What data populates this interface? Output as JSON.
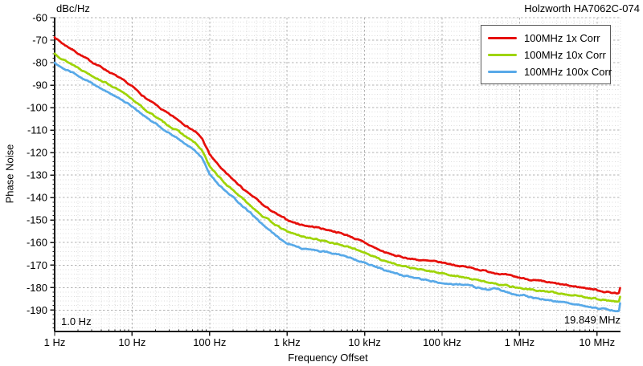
{
  "header": {
    "unit_label": "dBc/Hz",
    "title": "Holzworth HA7062C-074"
  },
  "chart_data": {
    "type": "line",
    "title": "Holzworth HA7062C-074",
    "xlabel": "Frequency Offset",
    "ylabel": "Phase Noise",
    "y_unit": "dBc/Hz",
    "x_scale": "log",
    "xlim": [
      1,
      19849000
    ],
    "ylim": [
      -199.5,
      -60
    ],
    "grid": true,
    "legend_position": "top-right",
    "x_ticks": [
      {
        "f": 1,
        "label": "1 Hz"
      },
      {
        "f": 10,
        "label": "10 Hz"
      },
      {
        "f": 100,
        "label": "100 Hz"
      },
      {
        "f": 1000,
        "label": "1 kHz"
      },
      {
        "f": 10000,
        "label": "10 kHz"
      },
      {
        "f": 100000,
        "label": "100 kHz"
      },
      {
        "f": 1000000,
        "label": "1 MHz"
      },
      {
        "f": 10000000,
        "label": "10 MHz"
      }
    ],
    "y_ticks": [
      -60,
      -70,
      -80,
      -90,
      -100,
      -110,
      -120,
      -130,
      -140,
      -150,
      -160,
      -170,
      -180,
      -190
    ],
    "annotations": {
      "start_frequency": "1.0 Hz",
      "stop_frequency": "19.849 MHz"
    },
    "colors": {
      "grid_major": "#b3b3b3",
      "grid_minor": "#dddddd",
      "axis": "#1a1a1a"
    },
    "series": [
      {
        "name": "100MHz 1x Corr",
        "color": "#e60f0a",
        "points": [
          [
            1,
            -68.7
          ],
          [
            1.3,
            -71.8
          ],
          [
            1.6,
            -73.6
          ],
          [
            2,
            -75.8
          ],
          [
            2.5,
            -78
          ],
          [
            3,
            -79.6
          ],
          [
            4,
            -82
          ],
          [
            5,
            -84
          ],
          [
            6.5,
            -86.3
          ],
          [
            8,
            -88.4
          ],
          [
            10,
            -90.6
          ],
          [
            13,
            -94
          ],
          [
            16,
            -96.6
          ],
          [
            20,
            -98.7
          ],
          [
            25,
            -101.2
          ],
          [
            30,
            -103
          ],
          [
            40,
            -105.6
          ],
          [
            50,
            -108
          ],
          [
            65,
            -110.6
          ],
          [
            80,
            -113.8
          ],
          [
            100,
            -120.8
          ],
          [
            130,
            -125.6
          ],
          [
            160,
            -129
          ],
          [
            200,
            -132
          ],
          [
            250,
            -135
          ],
          [
            300,
            -137.6
          ],
          [
            400,
            -140.6
          ],
          [
            500,
            -143.6
          ],
          [
            650,
            -146.2
          ],
          [
            800,
            -148.2
          ],
          [
            1000,
            -149.9
          ],
          [
            1300,
            -151.4
          ],
          [
            1600,
            -152.2
          ],
          [
            2000,
            -152.8
          ],
          [
            2500,
            -153.3
          ],
          [
            3000,
            -154
          ],
          [
            4000,
            -154.9
          ],
          [
            5000,
            -155.9
          ],
          [
            6500,
            -157.2
          ],
          [
            8000,
            -158.6
          ],
          [
            10000,
            -160.1
          ],
          [
            13000,
            -162
          ],
          [
            16000,
            -163.5
          ],
          [
            20000,
            -164.8
          ],
          [
            25000,
            -165.8
          ],
          [
            30000,
            -166.4
          ],
          [
            40000,
            -167.2
          ],
          [
            50000,
            -167.7
          ],
          [
            65000,
            -168.2
          ],
          [
            80000,
            -168.5
          ],
          [
            100000,
            -168.9
          ],
          [
            130000,
            -169.6
          ],
          [
            160000,
            -170.2
          ],
          [
            200000,
            -170.8
          ],
          [
            250000,
            -171.4
          ],
          [
            300000,
            -172
          ],
          [
            400000,
            -172.9
          ],
          [
            500000,
            -173.5
          ],
          [
            650000,
            -174.3
          ],
          [
            800000,
            -175
          ],
          [
            1000000,
            -175.6
          ],
          [
            1300000,
            -176.3
          ],
          [
            1600000,
            -176.9
          ],
          [
            2000000,
            -177.4
          ],
          [
            2500000,
            -177.9
          ],
          [
            3000000,
            -178.3
          ],
          [
            4000000,
            -179
          ],
          [
            5000000,
            -179.5
          ],
          [
            6500000,
            -180
          ],
          [
            8000000,
            -180.4
          ],
          [
            10000000,
            -181.1
          ],
          [
            13000000,
            -181.9
          ],
          [
            16000000,
            -182.3
          ],
          [
            18000000,
            -182.5
          ],
          [
            19200000,
            -182.1
          ],
          [
            19849000,
            -180.2
          ]
        ]
      },
      {
        "name": "100MHz 10x Corr",
        "color": "#9ed406",
        "points": [
          [
            1,
            -76
          ],
          [
            1.3,
            -78.6
          ],
          [
            1.6,
            -80.4
          ],
          [
            2,
            -82.1
          ],
          [
            2.5,
            -84.1
          ],
          [
            3,
            -85.6
          ],
          [
            4,
            -87.9
          ],
          [
            5,
            -89.6
          ],
          [
            6.5,
            -91.9
          ],
          [
            8,
            -94
          ],
          [
            10,
            -96.1
          ],
          [
            13,
            -99.4
          ],
          [
            16,
            -101.9
          ],
          [
            20,
            -103.9
          ],
          [
            25,
            -106.4
          ],
          [
            30,
            -108.1
          ],
          [
            40,
            -110.6
          ],
          [
            50,
            -113.1
          ],
          [
            65,
            -115.7
          ],
          [
            80,
            -119.2
          ],
          [
            100,
            -126
          ],
          [
            130,
            -130.6
          ],
          [
            160,
            -133.9
          ],
          [
            200,
            -136.6
          ],
          [
            250,
            -139.6
          ],
          [
            300,
            -142.1
          ],
          [
            400,
            -145.6
          ],
          [
            500,
            -148.6
          ],
          [
            650,
            -151.1
          ],
          [
            800,
            -153.3
          ],
          [
            1000,
            -155.1
          ],
          [
            1300,
            -156.4
          ],
          [
            1600,
            -157.3
          ],
          [
            2000,
            -158
          ],
          [
            2500,
            -158.7
          ],
          [
            3000,
            -159.3
          ],
          [
            4000,
            -160.1
          ],
          [
            5000,
            -161.1
          ],
          [
            6500,
            -162.3
          ],
          [
            8000,
            -163.3
          ],
          [
            10000,
            -164.3
          ],
          [
            13000,
            -166.1
          ],
          [
            16000,
            -167.4
          ],
          [
            20000,
            -168.6
          ],
          [
            25000,
            -169.5
          ],
          [
            30000,
            -170.3
          ],
          [
            40000,
            -171.3
          ],
          [
            50000,
            -172
          ],
          [
            65000,
            -172.6
          ],
          [
            80000,
            -173.1
          ],
          [
            100000,
            -173.6
          ],
          [
            130000,
            -174.4
          ],
          [
            160000,
            -175
          ],
          [
            200000,
            -175.7
          ],
          [
            250000,
            -176.3
          ],
          [
            300000,
            -176.9
          ],
          [
            400000,
            -177.6
          ],
          [
            500000,
            -178.2
          ],
          [
            650000,
            -178.9
          ],
          [
            800000,
            -179.5
          ],
          [
            1000000,
            -180.1
          ],
          [
            1300000,
            -180.8
          ],
          [
            1600000,
            -181.2
          ],
          [
            2000000,
            -181.6
          ],
          [
            2500000,
            -182
          ],
          [
            3000000,
            -182.4
          ],
          [
            4000000,
            -183
          ],
          [
            5000000,
            -183.5
          ],
          [
            6500000,
            -184
          ],
          [
            8000000,
            -184.4
          ],
          [
            10000000,
            -185
          ],
          [
            13000000,
            -185.6
          ],
          [
            16000000,
            -186.1
          ],
          [
            18000000,
            -186.4
          ],
          [
            19200000,
            -186.1
          ],
          [
            19849000,
            -184.1
          ]
        ]
      },
      {
        "name": "100MHz 100x Corr",
        "color": "#58a9e8",
        "points": [
          [
            1,
            -80
          ],
          [
            1.3,
            -82.4
          ],
          [
            1.6,
            -84.1
          ],
          [
            2,
            -85.6
          ],
          [
            2.5,
            -87.6
          ],
          [
            3,
            -89.1
          ],
          [
            4,
            -91.4
          ],
          [
            5,
            -93.3
          ],
          [
            6.5,
            -95.6
          ],
          [
            8,
            -97.4
          ],
          [
            10,
            -99.3
          ],
          [
            13,
            -102.6
          ],
          [
            16,
            -105.1
          ],
          [
            20,
            -107.1
          ],
          [
            25,
            -109.6
          ],
          [
            30,
            -111.3
          ],
          [
            40,
            -113.9
          ],
          [
            50,
            -116.4
          ],
          [
            65,
            -119.1
          ],
          [
            80,
            -122.6
          ],
          [
            100,
            -129.8
          ],
          [
            130,
            -134.1
          ],
          [
            160,
            -137.3
          ],
          [
            200,
            -139.9
          ],
          [
            250,
            -142.9
          ],
          [
            300,
            -145.4
          ],
          [
            400,
            -149.1
          ],
          [
            500,
            -152.6
          ],
          [
            650,
            -155.6
          ],
          [
            800,
            -158.1
          ],
          [
            1000,
            -160.1
          ],
          [
            1300,
            -161.7
          ],
          [
            1600,
            -162.6
          ],
          [
            2000,
            -163.3
          ],
          [
            2500,
            -163.7
          ],
          [
            3000,
            -164.1
          ],
          [
            4000,
            -164.8
          ],
          [
            5000,
            -165.6
          ],
          [
            6500,
            -166.7
          ],
          [
            8000,
            -167.7
          ],
          [
            10000,
            -168.7
          ],
          [
            13000,
            -170.4
          ],
          [
            16000,
            -171.7
          ],
          [
            20000,
            -172.8
          ],
          [
            25000,
            -173.7
          ],
          [
            30000,
            -174.5
          ],
          [
            40000,
            -175.5
          ],
          [
            50000,
            -176.2
          ],
          [
            65000,
            -176.8
          ],
          [
            80000,
            -177.3
          ],
          [
            100000,
            -177.8
          ],
          [
            130000,
            -178.3
          ],
          [
            160000,
            -178.5
          ],
          [
            200000,
            -178.9
          ],
          [
            250000,
            -179.4
          ],
          [
            300000,
            -180.2
          ],
          [
            400000,
            -180.9
          ],
          [
            500000,
            -180.5
          ],
          [
            650000,
            -181.7
          ],
          [
            800000,
            -182.7
          ],
          [
            1000000,
            -183.6
          ],
          [
            1150000,
            -183.2
          ],
          [
            1300000,
            -184.1
          ],
          [
            1600000,
            -184.7
          ],
          [
            2000000,
            -185.2
          ],
          [
            2500000,
            -185.7
          ],
          [
            3000000,
            -186.1
          ],
          [
            4000000,
            -186.7
          ],
          [
            5000000,
            -187.3
          ],
          [
            6500000,
            -187.9
          ],
          [
            8000000,
            -188.4
          ],
          [
            10000000,
            -189
          ],
          [
            13000000,
            -189.7
          ],
          [
            16000000,
            -190.2
          ],
          [
            18000000,
            -190.5
          ],
          [
            19200000,
            -190.3
          ],
          [
            19849000,
            -187
          ]
        ]
      }
    ]
  }
}
